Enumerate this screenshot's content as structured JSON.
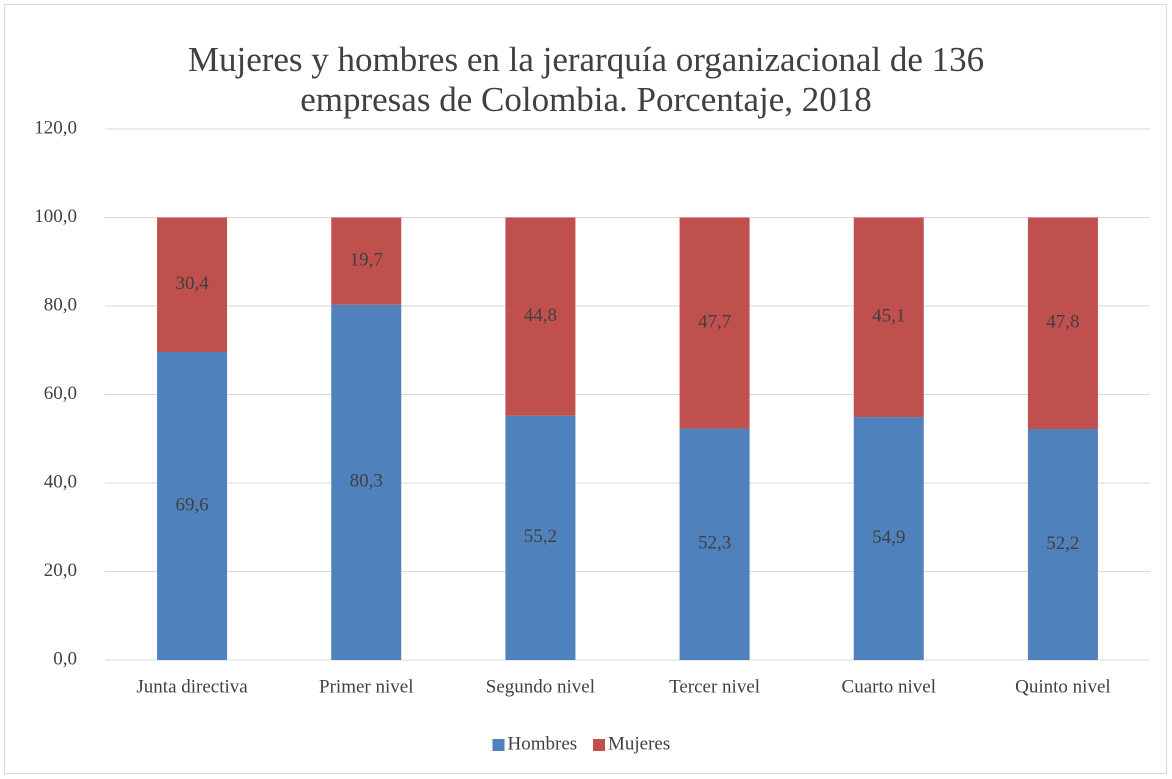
{
  "chart_data": {
    "type": "stacked_bar",
    "title": "Mujeres y hombres en la jerarquía organizacional de 136 empresas de Colombia. Porcentaje, 2018",
    "categories": [
      "Junta directiva",
      "Primer nivel",
      "Segundo nivel",
      "Tercer nivel",
      "Cuarto nivel",
      "Quinto nivel"
    ],
    "series": [
      {
        "name": "Hombres",
        "color": "#4f81bd",
        "values": [
          69.6,
          80.3,
          55.2,
          52.3,
          54.9,
          52.2
        ],
        "value_labels": [
          "69,6",
          "80,3",
          "55,2",
          "52,3",
          "54,9",
          "52,2"
        ]
      },
      {
        "name": "Mujeres",
        "color": "#c0504d",
        "values": [
          30.4,
          19.7,
          44.8,
          47.7,
          45.1,
          47.8
        ],
        "value_labels": [
          "30,4",
          "19,7",
          "44,8",
          "47,7",
          "45,1",
          "47,8"
        ]
      }
    ],
    "ylim": [
      0,
      120
    ],
    "yticks": [
      {
        "value": 0,
        "label": "0,0"
      },
      {
        "value": 20,
        "label": "20,0"
      },
      {
        "value": 40,
        "label": "40,0"
      },
      {
        "value": 60,
        "label": "60,0"
      },
      {
        "value": 80,
        "label": "80,0"
      },
      {
        "value": 100,
        "label": "100,0"
      },
      {
        "value": 120,
        "label": "120,0"
      }
    ],
    "grid": true,
    "legend": "bottom"
  }
}
